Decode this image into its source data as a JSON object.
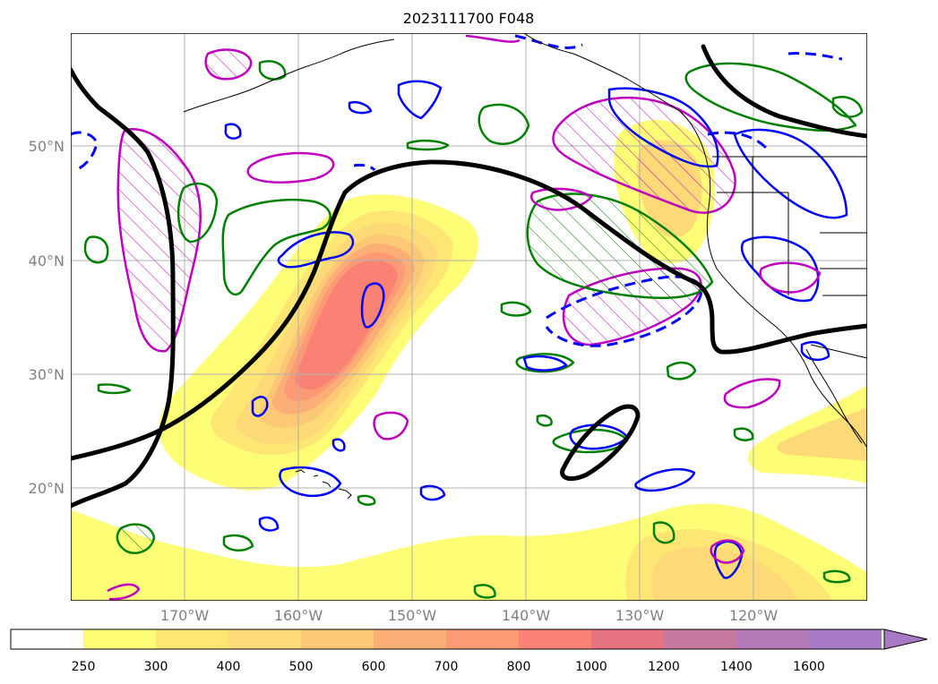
{
  "title": "2023111700 F048",
  "map": {
    "lat_labels": [
      "50°N",
      "40°N",
      "30°N",
      "20°N"
    ],
    "lon_labels": [
      "170°W",
      "160°W",
      "150°W",
      "140°W",
      "130°W",
      "120°W"
    ],
    "colors": {
      "coast": "#000000",
      "grid": "#b0b0b0",
      "green_contour": "#008000",
      "blue_contour": "#0000ff",
      "magenta_contour": "#c000c0",
      "black_contour": "#000000"
    }
  },
  "colorbar": {
    "labels": [
      "250",
      "300",
      "400",
      "500",
      "600",
      "700",
      "800",
      "1000",
      "1200",
      "1400",
      "1600"
    ],
    "colors": [
      "#ffffff",
      "#fefe76",
      "#fee675",
      "#fed977",
      "#fdc876",
      "#fcae77",
      "#fb9a75",
      "#fa8274",
      "#e57480",
      "#c7789f",
      "#b47ab8",
      "#a87ac6"
    ],
    "extend": "max"
  }
}
